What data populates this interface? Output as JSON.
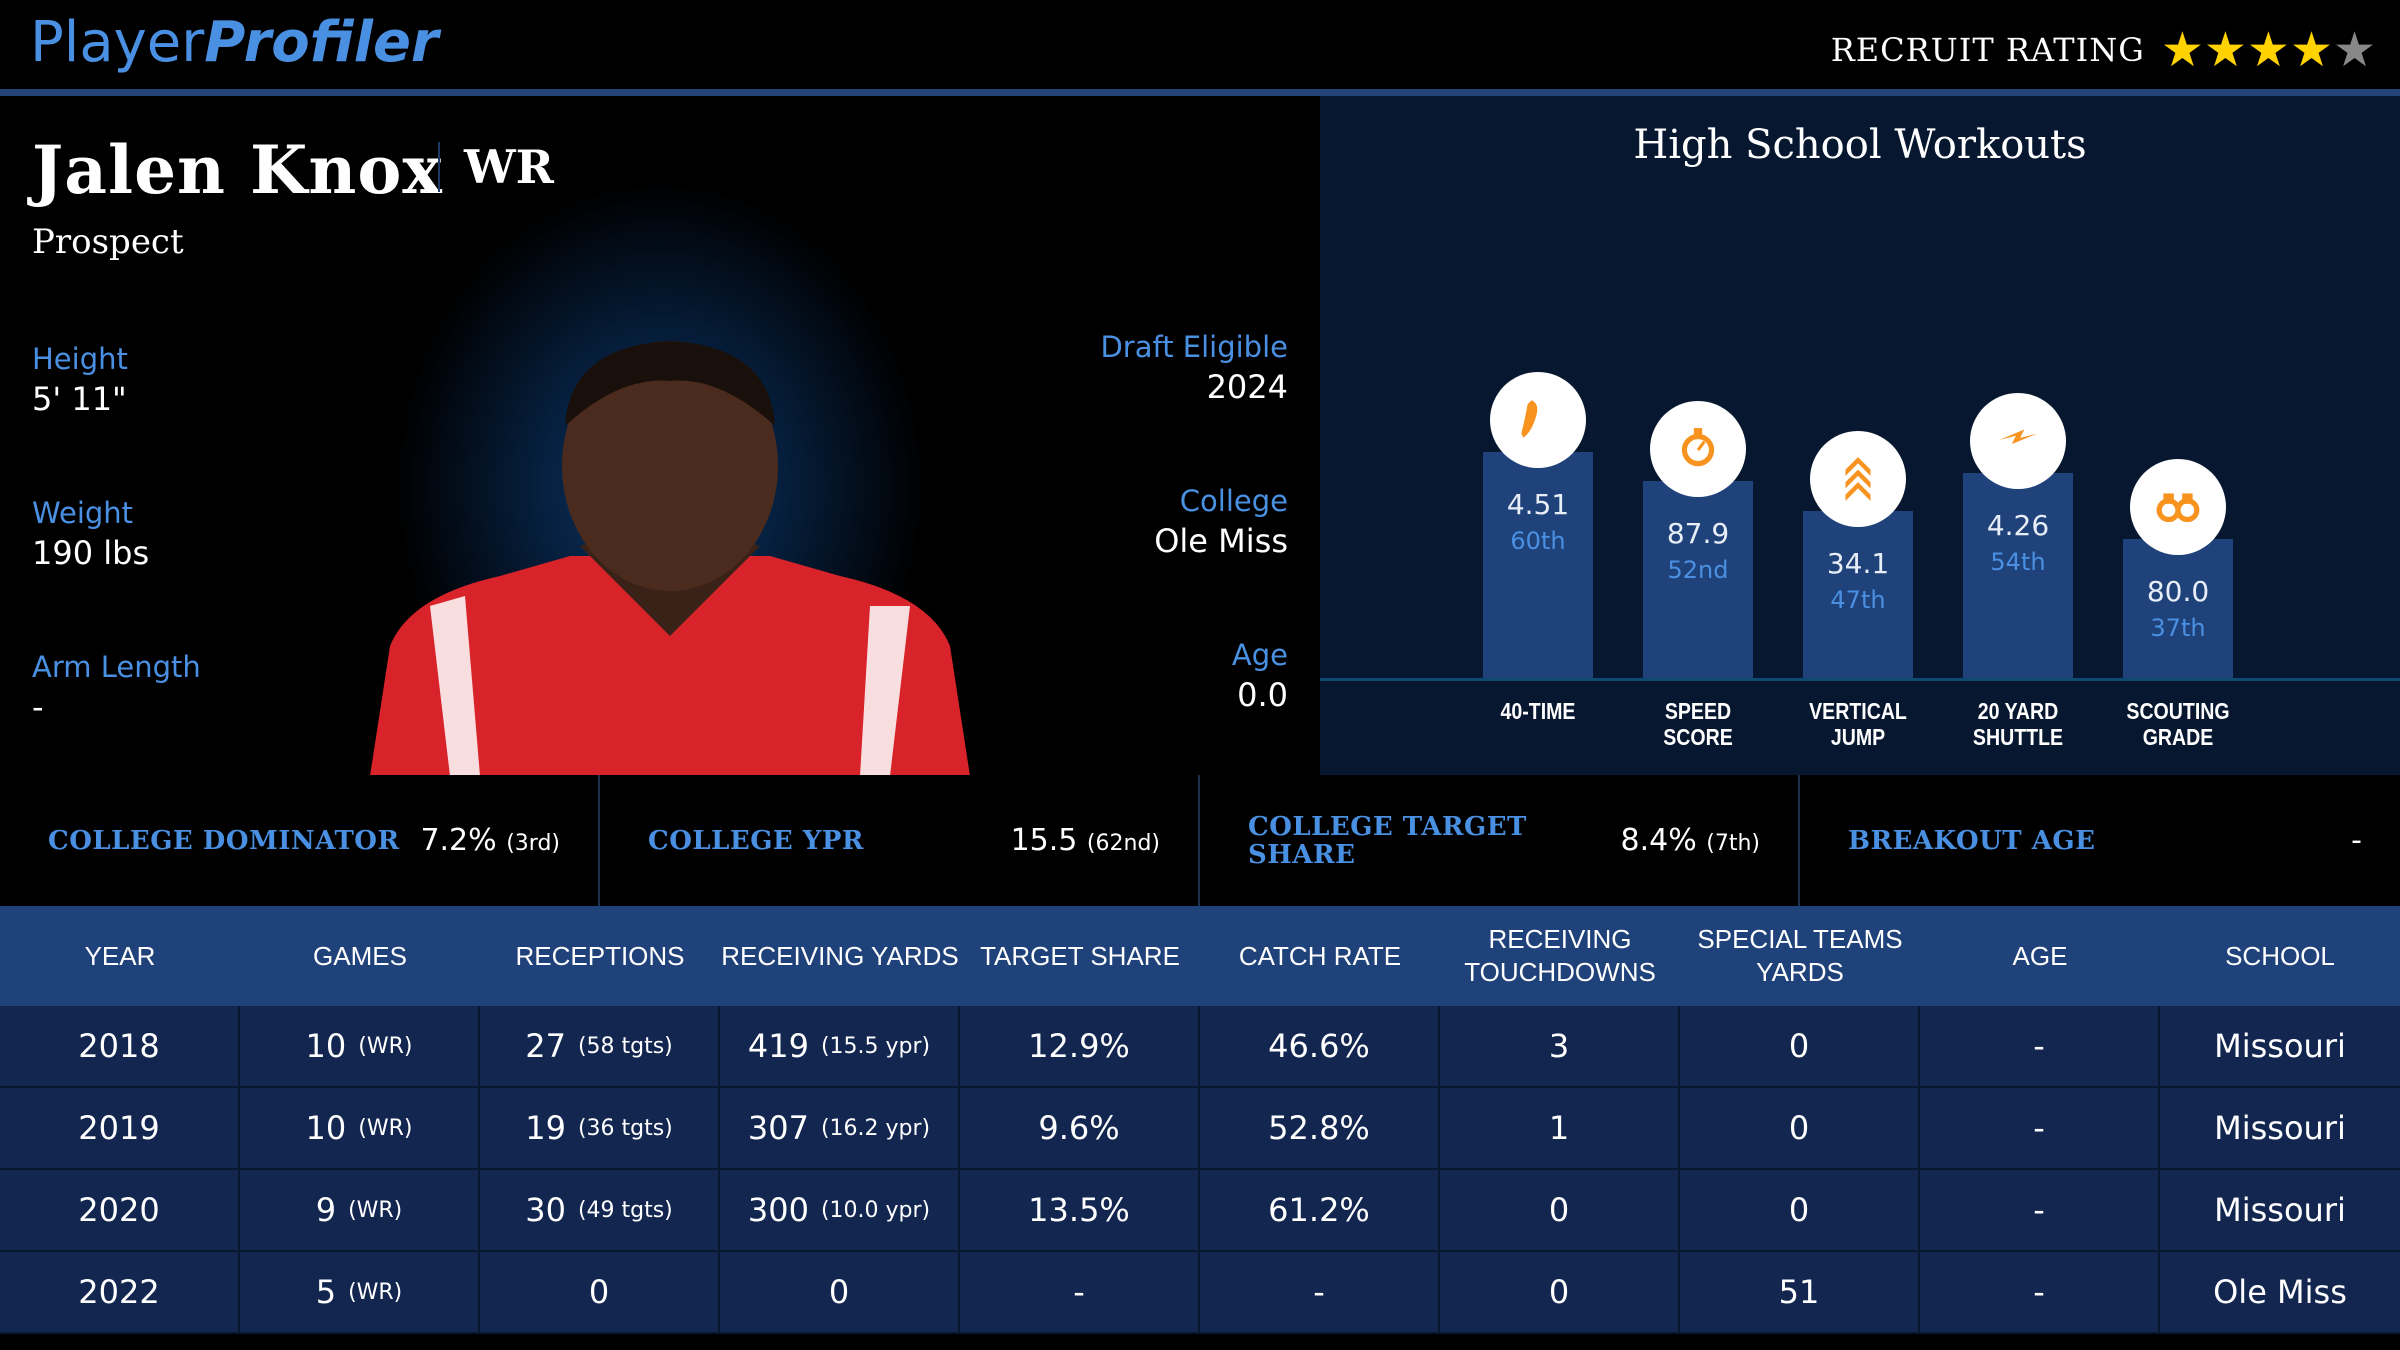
{
  "header": {
    "logo_light": "Player",
    "logo_bold": "Profiler",
    "recruit_label": "RECRUIT RATING",
    "stars_filled": 4,
    "stars_total": 5,
    "star_color": "#ffd200",
    "star_empty_color": "#888888"
  },
  "player": {
    "name": "Jalen Knox",
    "position": "WR",
    "status": "Prospect",
    "height_label": "Height",
    "height": "5' 11\"",
    "weight_label": "Weight",
    "weight": "190 lbs",
    "arm_label": "Arm Length",
    "arm": "-",
    "draft_label": "Draft Eligible",
    "draft": "2024",
    "college_label": "College",
    "college": "Ole Miss",
    "age_label": "Age",
    "age": "0.0"
  },
  "workouts": {
    "title": "High School Workouts",
    "items": [
      {
        "label1": "40-TIME",
        "label2": "",
        "value": "4.51",
        "pct": "60th",
        "percentile": 60,
        "icon": "shoe-icon"
      },
      {
        "label1": "SPEED",
        "label2": "SCORE",
        "value": "87.9",
        "pct": "52nd",
        "percentile": 52,
        "icon": "stopwatch-icon"
      },
      {
        "label1": "VERTICAL",
        "label2": "JUMP",
        "value": "34.1",
        "pct": "47th",
        "percentile": 47,
        "icon": "chevrons-up-icon"
      },
      {
        "label1": "20 YARD",
        "label2": "SHUTTLE",
        "value": "4.26",
        "pct": "54th",
        "percentile": 54,
        "icon": "lightning-icon"
      },
      {
        "label1": "SCOUTING",
        "label2": "GRADE",
        "value": "80.0",
        "pct": "37th",
        "percentile": 37,
        "icon": "binoculars-icon"
      }
    ]
  },
  "metrics": [
    {
      "label": "COLLEGE DOMINATOR",
      "value": "7.2%",
      "rank": "(3rd)"
    },
    {
      "label": "COLLEGE YPR",
      "value": "15.5",
      "rank": "(62nd)"
    },
    {
      "label": "COLLEGE TARGET SHARE",
      "value": "8.4%",
      "rank": "(7th)"
    },
    {
      "label": "BREAKOUT AGE",
      "value": "-",
      "rank": ""
    }
  ],
  "table": {
    "headers": [
      "YEAR",
      "GAMES",
      "RECEPTIONS",
      "RECEIVING YARDS",
      "TARGET SHARE",
      "CATCH RATE",
      "RECEIVING TOUCHDOWNS",
      "SPECIAL TEAMS YARDS",
      "AGE",
      "SCHOOL"
    ],
    "rows": [
      [
        [
          "2018",
          ""
        ],
        [
          "10",
          "(WR)"
        ],
        [
          "27",
          "(58 tgts)"
        ],
        [
          "419",
          "(15.5 ypr)"
        ],
        [
          "12.9%",
          ""
        ],
        [
          "46.6%",
          ""
        ],
        [
          "3",
          ""
        ],
        [
          "0",
          ""
        ],
        [
          "-",
          ""
        ],
        [
          "Missouri",
          ""
        ]
      ],
      [
        [
          "2019",
          ""
        ],
        [
          "10",
          "(WR)"
        ],
        [
          "19",
          "(36 tgts)"
        ],
        [
          "307",
          "(16.2 ypr)"
        ],
        [
          "9.6%",
          ""
        ],
        [
          "52.8%",
          ""
        ],
        [
          "1",
          ""
        ],
        [
          "0",
          ""
        ],
        [
          "-",
          ""
        ],
        [
          "Missouri",
          ""
        ]
      ],
      [
        [
          "2020",
          ""
        ],
        [
          "9",
          "(WR)"
        ],
        [
          "30",
          "(49 tgts)"
        ],
        [
          "300",
          "(10.0 ypr)"
        ],
        [
          "13.5%",
          ""
        ],
        [
          "61.2%",
          ""
        ],
        [
          "0",
          ""
        ],
        [
          "0",
          ""
        ],
        [
          "-",
          ""
        ],
        [
          "Missouri",
          ""
        ]
      ],
      [
        [
          "2022",
          ""
        ],
        [
          "5",
          "(WR)"
        ],
        [
          "0",
          ""
        ],
        [
          "0",
          ""
        ],
        [
          "-",
          ""
        ],
        [
          "-",
          ""
        ],
        [
          "0",
          ""
        ],
        [
          "51",
          ""
        ],
        [
          "-",
          ""
        ],
        [
          "Ole Miss",
          ""
        ]
      ]
    ]
  }
}
